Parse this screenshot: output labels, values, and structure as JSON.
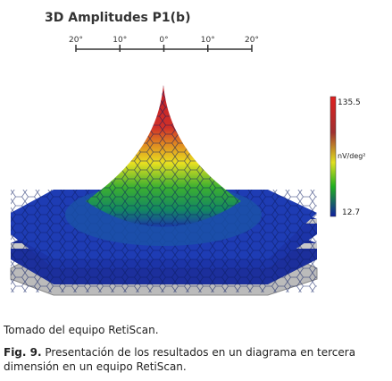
{
  "figure": {
    "title": "3D Amplitudes P1(b)",
    "scale_ticks": [
      "20°",
      "10°",
      "0°",
      "10°",
      "20°"
    ],
    "colorbar": {
      "max": "135.5",
      "unit": "nV/deg²",
      "min": "12.7"
    },
    "source": "Tomado del equipo RetiScan.",
    "caption_label": "Fig. 9.",
    "caption_text": "Presentación de los resultados en un diagrama en tercera dimensión en un equipo RetiScan."
  }
}
